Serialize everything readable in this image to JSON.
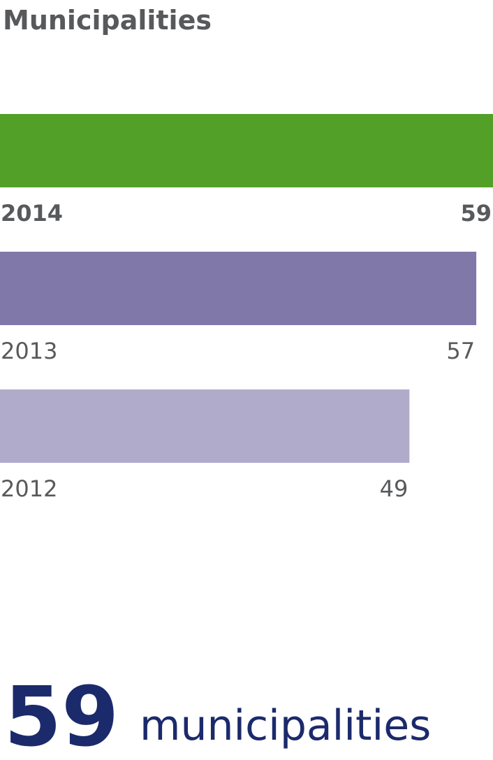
{
  "chart_data": {
    "type": "bar",
    "orientation": "horizontal",
    "title": "Municipalities",
    "categories": [
      "2014",
      "2013",
      "2012"
    ],
    "values": [
      59,
      57,
      49
    ],
    "colors": [
      "#52a027",
      "#8078a9",
      "#b1abcb"
    ],
    "callout": {
      "value": 59,
      "text": "municipalities",
      "color": "#1b2a6b"
    }
  }
}
